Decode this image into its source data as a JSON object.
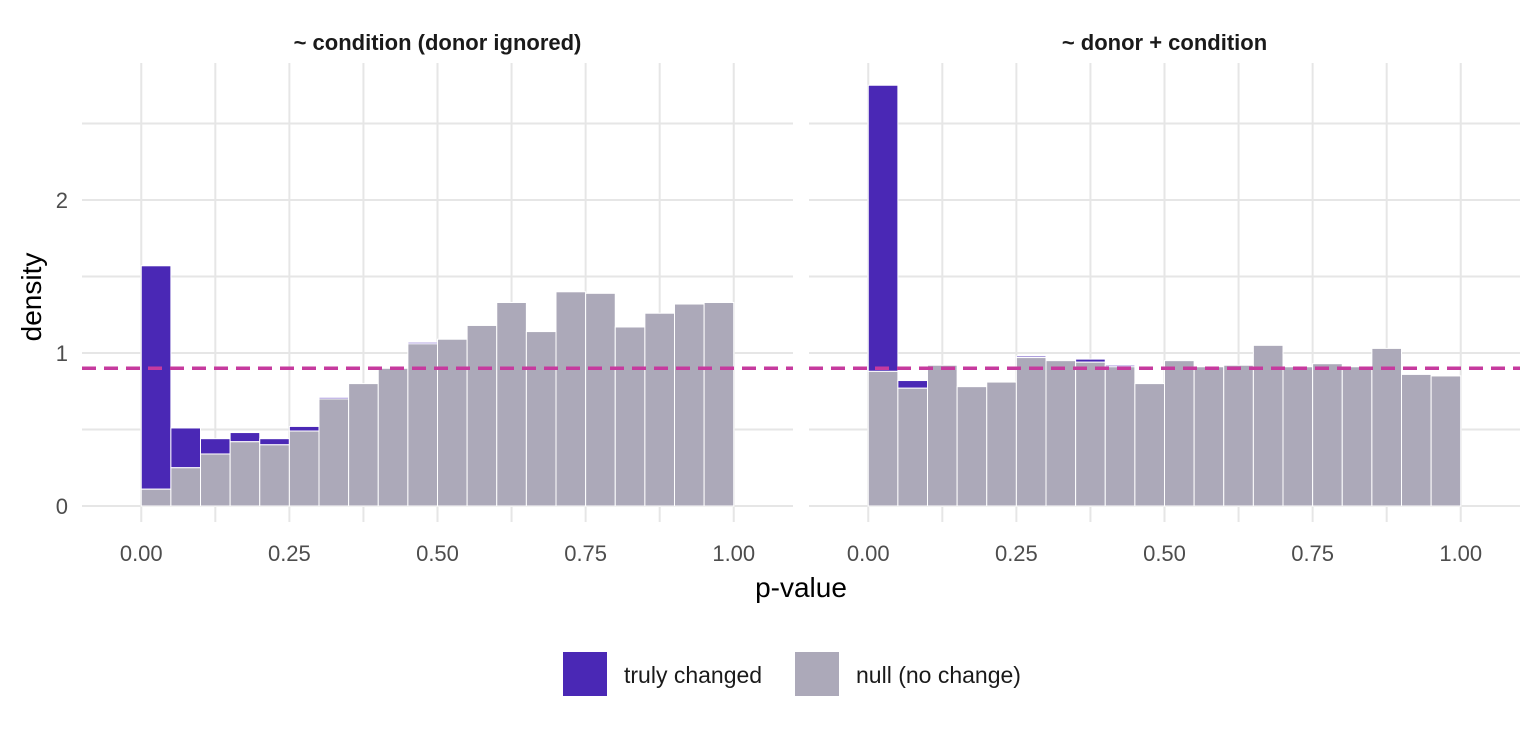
{
  "chart_data": {
    "type": "bar",
    "subtype": "stacked-histogram-faceted",
    "xlabel": "p-value",
    "ylabel": "density",
    "xlim": [
      -0.1,
      1.1
    ],
    "ylim": [
      -0.1,
      2.9
    ],
    "x_ticks": [
      0.0,
      0.25,
      0.5,
      0.75,
      1.0
    ],
    "x_tick_labels": [
      "0.00",
      "0.25",
      "0.50",
      "0.75",
      "1.00"
    ],
    "y_ticks": [
      0,
      1,
      2
    ],
    "y_tick_labels": [
      "0",
      "1",
      "2"
    ],
    "grid": true,
    "bin_width": 0.05,
    "bin_starts": [
      0.0,
      0.05,
      0.1,
      0.15,
      0.2,
      0.25,
      0.3,
      0.35,
      0.4,
      0.45,
      0.5,
      0.55,
      0.6,
      0.65,
      0.7,
      0.75,
      0.8,
      0.85,
      0.9,
      0.95
    ],
    "reference_line": {
      "y": 0.9,
      "color": "#c63a9e",
      "style": "dashed"
    },
    "colors": {
      "truly_changed": "#4a28b5",
      "null": "#aca9b9",
      "panel_grid": "#e6e6e6",
      "bar_outline": "#ffffff"
    },
    "legend": {
      "position": "bottom",
      "entries": [
        {
          "label": "truly changed",
          "color": "#4a28b5"
        },
        {
          "label": "null (no change)",
          "color": "#aca9b9"
        }
      ]
    },
    "panels": [
      {
        "title": "~ condition (donor ignored)",
        "series": [
          {
            "name": "null (no change)",
            "values": [
              0.11,
              0.25,
              0.34,
              0.42,
              0.4,
              0.49,
              0.7,
              0.8,
              0.9,
              1.06,
              1.09,
              1.18,
              1.33,
              1.14,
              1.4,
              1.39,
              1.17,
              1.26,
              1.32,
              1.33
            ]
          },
          {
            "name": "truly changed",
            "values": [
              1.46,
              0.26,
              0.1,
              0.06,
              0.04,
              0.03,
              0.01,
              0.0,
              0.0,
              0.01,
              0.0,
              0.0,
              0.0,
              0.0,
              0.0,
              0.0,
              0.0,
              0.0,
              0.0,
              0.0
            ]
          }
        ]
      },
      {
        "title": "~ donor + condition",
        "series": [
          {
            "name": "null (no change)",
            "values": [
              0.88,
              0.77,
              0.92,
              0.78,
              0.81,
              0.97,
              0.95,
              0.94,
              0.91,
              0.8,
              0.95,
              0.91,
              0.92,
              1.05,
              0.91,
              0.93,
              0.91,
              1.03,
              0.86,
              0.85
            ]
          },
          {
            "name": "truly changed",
            "values": [
              1.87,
              0.05,
              0.0,
              0.0,
              0.0,
              0.01,
              0.0,
              0.02,
              0.01,
              0.0,
              0.0,
              0.0,
              0.0,
              0.0,
              0.0,
              0.0,
              0.0,
              0.0,
              0.0,
              0.0
            ]
          }
        ]
      }
    ]
  }
}
